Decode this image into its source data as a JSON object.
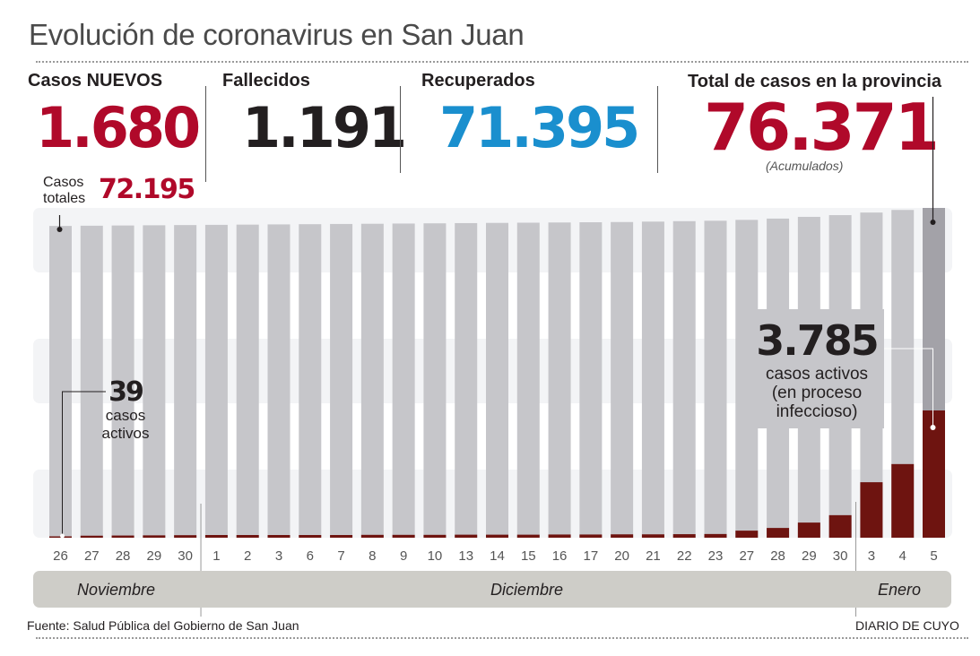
{
  "header": {
    "title": "Evolución de coronavirus en San Juan"
  },
  "stats": {
    "new_cases": {
      "label": "Casos NUEVOS",
      "value": "1.680",
      "color": "#b0092a"
    },
    "total_cases_sub": {
      "label_line1": "Casos",
      "label_line2": "totales",
      "value": "72.195",
      "color": "#b0092a"
    },
    "deaths": {
      "label": "Fallecidos",
      "value": "1.191",
      "color": "#231f20"
    },
    "recovered": {
      "label": "Recuperados",
      "value": "71.395",
      "color": "#1a8fce"
    },
    "province_total": {
      "label": "Total de casos en la provincia",
      "value": "76.371",
      "note": "(Acumulados)",
      "color": "#b0092a"
    }
  },
  "annotations": {
    "first": {
      "value": "39",
      "line1": "casos",
      "line2": "activos"
    },
    "last": {
      "value": "3.785",
      "line1": "casos activos",
      "line2": "(en proceso",
      "line3": "infeccioso)"
    }
  },
  "months": [
    {
      "label": "Noviembre"
    },
    {
      "label": "Diciembre"
    },
    {
      "label": "Enero"
    }
  ],
  "footer": {
    "source": "Fuente: Salud Pública del Gobierno de San Juan",
    "credit": "DIARIO DE CUYO"
  },
  "chart_data": {
    "type": "bar",
    "title": "Evolución de coronavirus en San Juan",
    "xlabel": "",
    "ylabel": "",
    "categories": [
      "26",
      "27",
      "28",
      "29",
      "30",
      "1",
      "2",
      "3",
      "6",
      "7",
      "8",
      "9",
      "10",
      "13",
      "14",
      "15",
      "16",
      "17",
      "20",
      "21",
      "22",
      "23",
      "27",
      "28",
      "29",
      "30",
      "3",
      "4",
      "5"
    ],
    "month_groups": [
      {
        "month": "Noviembre",
        "from": 0,
        "to": 4
      },
      {
        "month": "Diciembre",
        "from": 5,
        "to": 25
      },
      {
        "month": "Enero",
        "from": 26,
        "to": 28
      }
    ],
    "series": [
      {
        "name": "Casos totales (acumulados)",
        "color": "#c6c6ca",
        "highlight_color": "#a3a2a8",
        "values": [
          72195,
          72250,
          72300,
          72350,
          72400,
          72450,
          72500,
          72550,
          72600,
          72650,
          72700,
          72750,
          72800,
          72850,
          72900,
          72950,
          73000,
          73050,
          73100,
          73200,
          73300,
          73400,
          73600,
          73900,
          74300,
          74700,
          75300,
          75900,
          76371
        ]
      },
      {
        "name": "Casos activos",
        "color": "#6e1410",
        "values": [
          39,
          60,
          65,
          70,
          75,
          80,
          80,
          80,
          80,
          80,
          85,
          85,
          85,
          90,
          90,
          90,
          95,
          95,
          100,
          100,
          105,
          110,
          210,
          290,
          450,
          670,
          1650,
          2190,
          3785
        ]
      }
    ],
    "ylim": [
      0,
      76371
    ],
    "grid": false,
    "legend": "none"
  }
}
